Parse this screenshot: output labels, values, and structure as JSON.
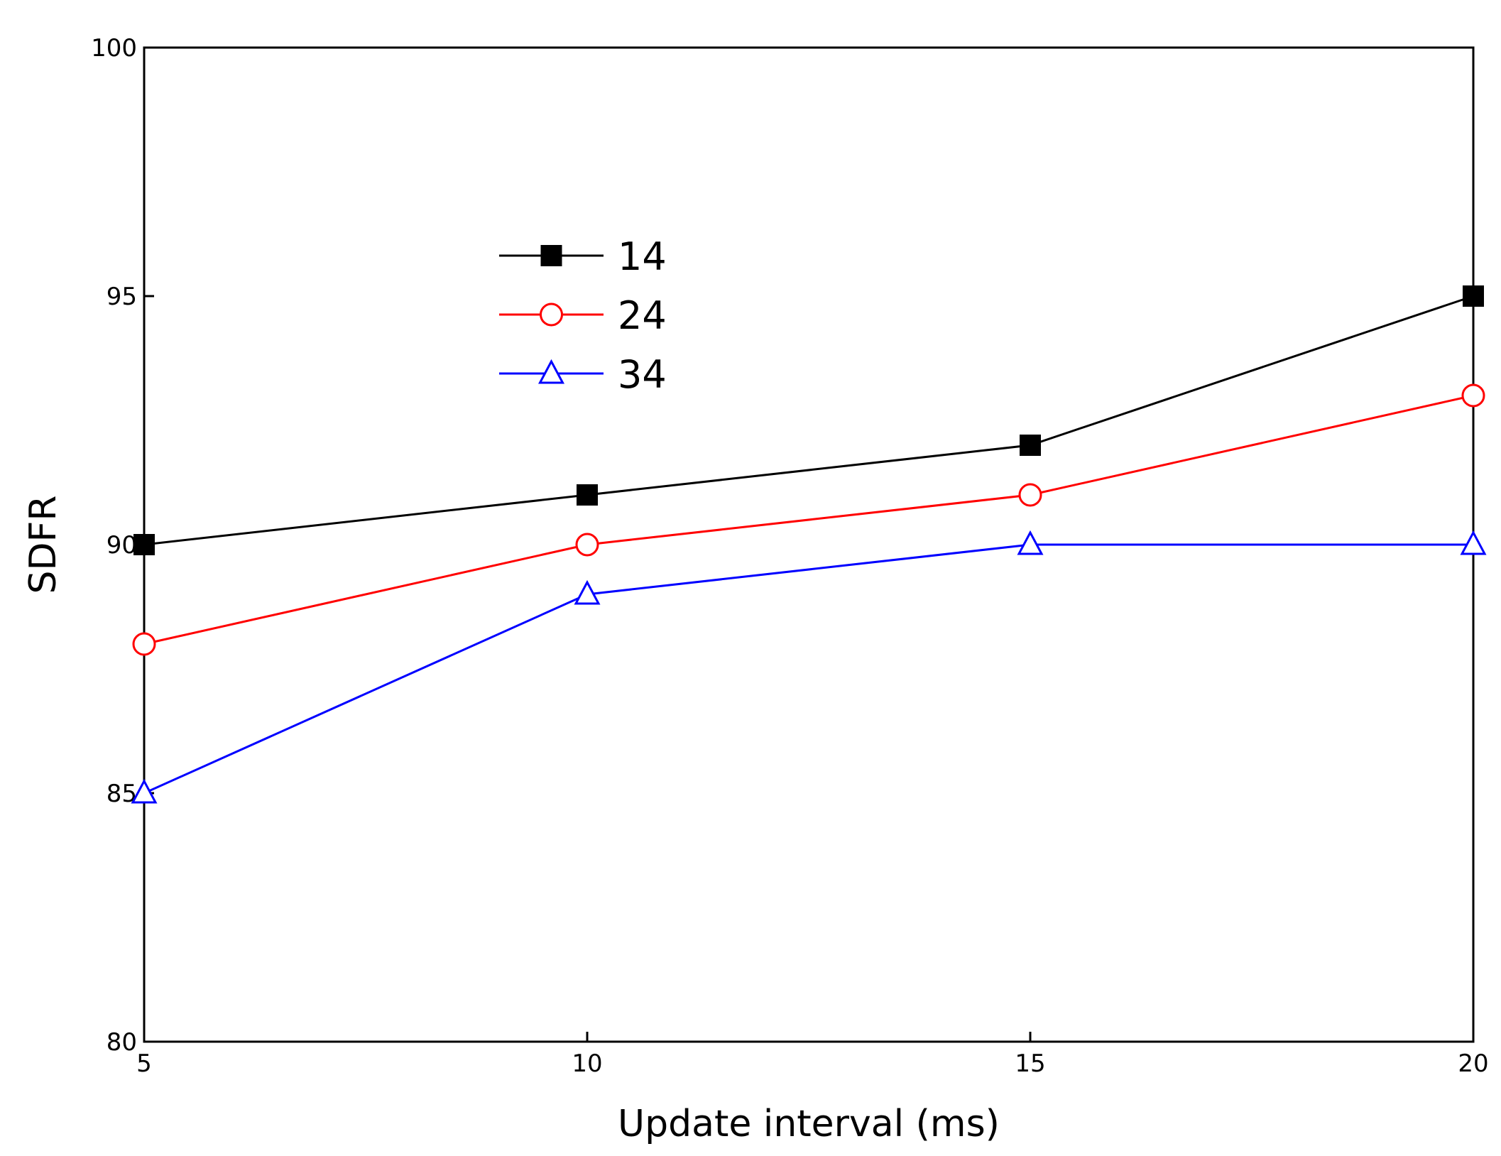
{
  "chart_data": {
    "type": "line",
    "title": "",
    "xlabel": "Update interval (ms)",
    "ylabel": "SDFR",
    "x": [
      5,
      10,
      15,
      20
    ],
    "xlim": [
      5,
      20
    ],
    "ylim": [
      80,
      100
    ],
    "xticks": [
      5,
      10,
      15,
      20
    ],
    "yticks": [
      80,
      85,
      90,
      95,
      100
    ],
    "grid": false,
    "legend_position": "upper-left-center",
    "series": [
      {
        "name": "14",
        "values": [
          90,
          91,
          92,
          95
        ],
        "color": "#000000",
        "marker": "filled-square"
      },
      {
        "name": "24",
        "values": [
          88,
          90,
          91,
          93
        ],
        "color": "#ff0000",
        "marker": "open-circle"
      },
      {
        "name": "34",
        "values": [
          85,
          89,
          90,
          90
        ],
        "color": "#0000ff",
        "marker": "open-triangle"
      }
    ]
  }
}
